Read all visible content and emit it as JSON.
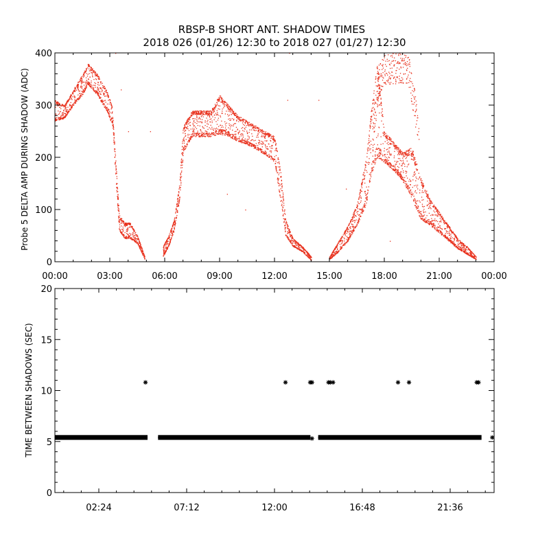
{
  "title_line1": "RBSP-B SHORT ANT. SHADOW TIMES",
  "title_line2": "2018 026 (01/26) 12:30 to 2018 027 (01/27) 12:30",
  "colors": {
    "points": "#e8301c",
    "axes": "#000000",
    "background": "#ffffff",
    "markers": "#000000"
  },
  "chart_data": [
    {
      "type": "scatter",
      "ylabel": "Probe 5 DELTA AMP DURING SHADOW (ADC)",
      "xlim": [
        0,
        24
      ],
      "ylim": [
        0,
        400
      ],
      "x_tick_labels": [
        "00:00",
        "03:00",
        "06:00",
        "09:00",
        "12:00",
        "15:00",
        "18:00",
        "21:00",
        "00:00"
      ],
      "y_tick_labels": [
        "0",
        "100",
        "200",
        "300",
        "400"
      ],
      "series": [
        {
          "envelope_bands": [
            {
              "x": [
                0.0,
                0.5,
                1.0,
                1.5,
                1.8,
                2.3,
                2.8,
                3.15,
                3.3,
                3.5,
                3.8,
                4.1,
                4.5,
                4.9
              ],
              "y": [
                270,
                275,
                300,
                320,
                340,
                320,
                290,
                260,
                170,
                60,
                45,
                45,
                35,
                5
              ]
            },
            {
              "x": [
                0.0,
                0.5,
                1.0,
                1.5,
                1.8,
                2.3,
                2.8,
                3.1,
                3.3,
                3.5,
                3.8,
                4.1,
                4.5,
                4.9
              ],
              "y": [
                310,
                300,
                330,
                360,
                380,
                360,
                330,
                300,
                200,
                90,
                75,
                75,
                50,
                10
              ]
            },
            {
              "x": [
                5.9,
                6.2,
                6.5,
                6.8,
                7.0,
                7.5,
                8.0,
                8.5,
                9.0,
                9.5,
                10.0,
                10.5,
                11.0,
                11.5,
                12.0,
                12.3,
                12.6,
                13.0,
                13.5,
                14.0
              ],
              "y": [
                10,
                30,
                60,
                120,
                210,
                240,
                240,
                240,
                245,
                240,
                230,
                225,
                215,
                205,
                190,
                120,
                50,
                30,
                20,
                3
              ]
            },
            {
              "x": [
                5.9,
                6.2,
                6.5,
                6.8,
                7.0,
                7.5,
                8.0,
                8.5,
                9.0,
                9.5,
                10.0,
                10.5,
                11.0,
                11.5,
                12.0,
                12.3,
                12.6,
                13.0,
                13.5,
                14.0
              ],
              "y": [
                30,
                50,
                80,
                150,
                260,
                290,
                290,
                290,
                320,
                300,
                280,
                270,
                260,
                250,
                240,
                180,
                80,
                45,
                30,
                10
              ]
            },
            {
              "x": [
                15.0,
                15.5,
                16.0,
                16.5,
                17.0,
                17.3,
                17.6,
                18.0,
                18.5,
                19.0,
                19.5,
                20.0,
                20.5,
                21.0,
                21.5,
                22.0,
                22.5,
                23.0
              ],
              "y": [
                5,
                20,
                40,
                70,
                110,
                170,
                200,
                190,
                175,
                155,
                120,
                80,
                70,
                55,
                40,
                25,
                15,
                5
              ]
            },
            {
              "x": [
                15.0,
                15.5,
                16.0,
                16.5,
                17.0,
                17.3,
                17.6,
                18.0,
                18.5,
                19.0,
                19.5,
                20.0,
                20.5,
                21.0,
                21.5,
                22.0,
                22.5,
                23.0
              ],
              "y": [
                10,
                40,
                70,
                110,
                200,
                300,
                380,
                250,
                230,
                210,
                220,
                160,
                120,
                95,
                70,
                45,
                30,
                10
              ]
            },
            {
              "x": [
                17.4,
                17.7,
                18.0,
                18.5,
                19.0,
                19.3,
                19.6,
                19.9
              ],
              "y": [
                300,
                380,
                400,
                400,
                400,
                400,
                340,
                260
              ]
            }
          ],
          "outliers": [
            [
              3.3,
              400
            ],
            [
              3.6,
              330
            ],
            [
              5.2,
              250
            ],
            [
              9.4,
              130
            ],
            [
              12.8,
              400
            ],
            [
              12.7,
              310
            ],
            [
              14.4,
              310
            ],
            [
              15.9,
              140
            ],
            [
              18.3,
              40
            ],
            [
              19.2,
              380
            ],
            [
              10.4,
              100
            ],
            [
              4.0,
              250
            ]
          ]
        }
      ]
    },
    {
      "type": "scatter",
      "ylabel": "TIME BETWEEN SHADOWS (SEC)",
      "xlim": [
        0,
        24
      ],
      "ylim": [
        0,
        20
      ],
      "x_tick_labels": [
        "02:24",
        "07:12",
        "12:00",
        "16:48",
        "21:36"
      ],
      "x_tick_hours": [
        2.4,
        7.2,
        12.0,
        16.8,
        21.6
      ],
      "y_tick_labels": [
        "0",
        "5",
        "10",
        "15",
        "20"
      ],
      "series": [
        {
          "baseline_value": 5.4,
          "baseline_segments": [
            [
              0.1,
              4.95
            ],
            [
              5.75,
              13.85
            ],
            [
              14.5,
              23.2
            ]
          ],
          "baseline_extra_points": [
            [
              14.05,
              5.3
            ],
            [
              23.9,
              5.4
            ]
          ],
          "points": [
            [
              4.95,
              10.8
            ],
            [
              12.6,
              10.8
            ],
            [
              13.95,
              10.8
            ],
            [
              14.05,
              10.8
            ],
            [
              14.95,
              10.8
            ],
            [
              15.05,
              10.8
            ],
            [
              15.2,
              10.8
            ],
            [
              18.75,
              10.8
            ],
            [
              19.35,
              10.8
            ],
            [
              23.05,
              10.8
            ],
            [
              23.15,
              10.8
            ]
          ]
        }
      ]
    }
  ]
}
